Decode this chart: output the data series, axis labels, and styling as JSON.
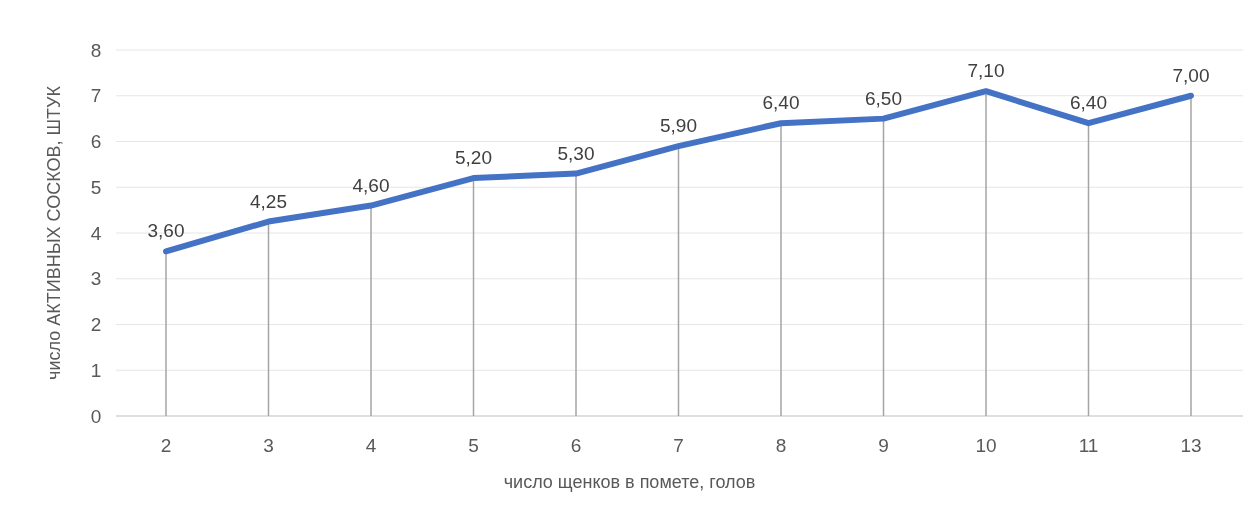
{
  "chart_data": {
    "type": "line",
    "xlabel": "число щенков в помете, голов",
    "ylabel": "число АКТИВНЫХ СОСКОВ, ШТУК",
    "categories": [
      "2",
      "3",
      "4",
      "5",
      "6",
      "7",
      "8",
      "9",
      "10",
      "11",
      "13"
    ],
    "series": [
      {
        "color": "#4472c4",
        "values": [
          3.6,
          4.25,
          4.6,
          5.2,
          5.3,
          5.9,
          6.4,
          6.5,
          7.1,
          6.4,
          7.0
        ],
        "value_labels": [
          "3,60",
          "4,25",
          "4,60",
          "5,20",
          "5,30",
          "5,90",
          "6,40",
          "6,50",
          "7,10",
          "6,40",
          "7,00"
        ]
      }
    ],
    "ylim": [
      0,
      8
    ],
    "yticks": [
      0,
      1,
      2,
      3,
      4,
      5,
      6,
      7,
      8
    ],
    "grid": true,
    "marker": "none",
    "line_style": "solid"
  }
}
